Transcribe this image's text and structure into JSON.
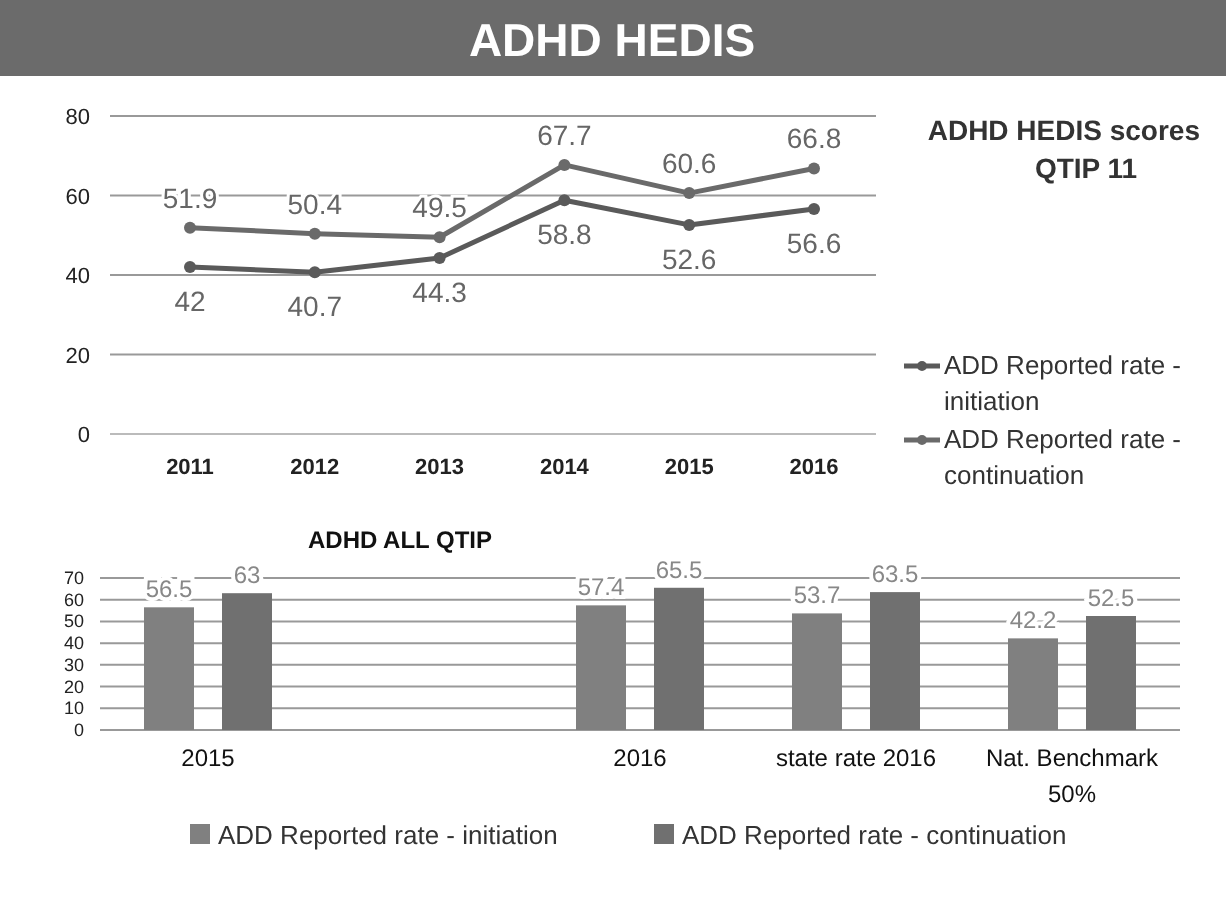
{
  "chart_data": [
    {
      "type": "line",
      "legend_title": "ADHD HEDIS scores\nQTIP 11",
      "annotations": [
        "ADHD  HEDIS"
      ],
      "categories": [
        "2011",
        "2012",
        "2013",
        "2014",
        "2015",
        "2016"
      ],
      "series": [
        {
          "name": "ADD Reported rate - initiation",
          "color": "#5a5a5a",
          "values": [
            42,
            40.7,
            44.3,
            58.8,
            52.6,
            56.6
          ]
        },
        {
          "name": "ADD Reported rate - continuation",
          "color": "#6a6a6a",
          "values": [
            51.9,
            50.4,
            49.5,
            67.7,
            60.6,
            66.8
          ]
        }
      ],
      "ylim": [
        0,
        80
      ],
      "yticks": [
        0,
        20,
        40,
        60,
        80
      ],
      "grid": "y",
      "legend": "right",
      "marker": "circle",
      "data_labels": true
    },
    {
      "type": "bar",
      "title": "ADHD ALL QTIP",
      "categories": [
        "2015",
        null,
        "2016",
        "state rate  2016",
        "Nat. Benchmark 50%"
      ],
      "series": [
        {
          "name": "ADD Reported rate - initiation",
          "color": "#808080",
          "values": [
            56.5,
            null,
            57.4,
            53.7,
            42.2
          ]
        },
        {
          "name": "ADD Reported rate - continuation",
          "color": "#707070",
          "values": [
            63,
            null,
            65.5,
            63.5,
            52.5
          ]
        }
      ],
      "ylim": [
        0,
        70
      ],
      "yticks": [
        0,
        10,
        20,
        30,
        40,
        50,
        60,
        70
      ],
      "grid": "y",
      "legend": "bottom",
      "data_labels": true
    }
  ]
}
